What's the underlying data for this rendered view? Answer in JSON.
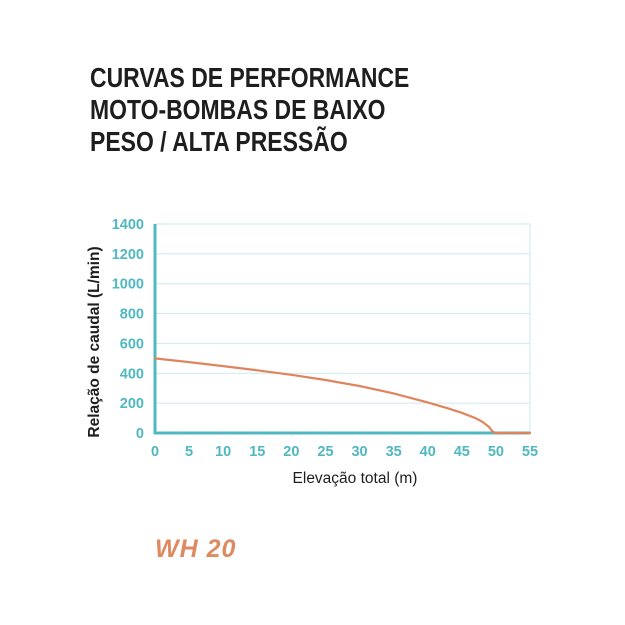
{
  "title_lines": [
    "CURVAS DE PERFORMANCE",
    "MOTO-BOMBAS DE BAIXO",
    "PESO / ALTA PRESSÃO"
  ],
  "model_label": "WH 20",
  "colors": {
    "axis": "#4fb8c1",
    "grid": "#cfeaed",
    "curve": "#e0845e",
    "text": "#1e1e1e",
    "model": "#de8a60"
  },
  "chart_data": {
    "type": "line",
    "xlabel": "Elevação total (m)",
    "ylabel": "Relação de caudal (L/min)",
    "xlim": [
      0,
      55
    ],
    "ylim": [
      0,
      1400
    ],
    "xticks": [
      0,
      5,
      10,
      15,
      20,
      25,
      30,
      35,
      40,
      45,
      50,
      55
    ],
    "yticks": [
      0,
      200,
      400,
      600,
      800,
      1000,
      1200,
      1400
    ],
    "grid": "horizontal",
    "series": [
      {
        "x": [
          0,
          5,
          10,
          15,
          20,
          25,
          30,
          35,
          40,
          43,
          45,
          47,
          48,
          49,
          49.5,
          50,
          55
        ],
        "y": [
          500,
          475,
          448,
          420,
          390,
          355,
          315,
          265,
          205,
          165,
          135,
          100,
          75,
          40,
          10,
          0,
          0
        ]
      }
    ]
  }
}
